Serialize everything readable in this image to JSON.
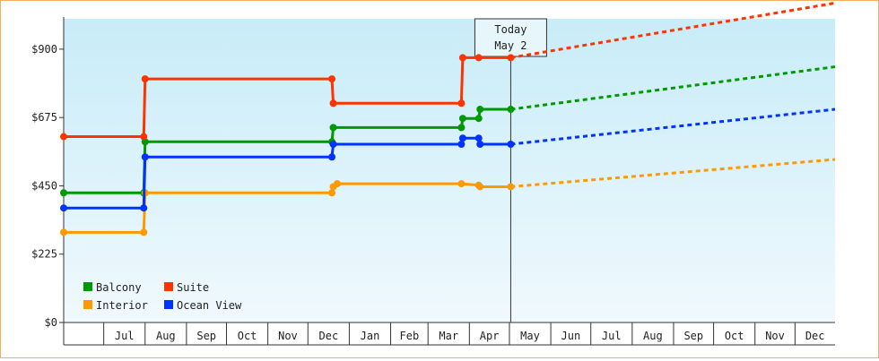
{
  "chart_data": {
    "type": "line",
    "title": "",
    "xlabel": "",
    "ylabel": "",
    "x_unit": "month",
    "x_range": [
      "2024-06-01",
      "2025-12-31"
    ],
    "ylim": [
      0,
      1000
    ],
    "y_ticks": [
      {
        "value": 0,
        "label": "$0"
      },
      {
        "value": 225,
        "label": "$225"
      },
      {
        "value": 450,
        "label": "$450"
      },
      {
        "value": 675,
        "label": "$675"
      },
      {
        "value": 900,
        "label": "$900"
      }
    ],
    "x_tick_labels": [
      {
        "date": "2024-07-01",
        "label": "Jul"
      },
      {
        "date": "2024-08-01",
        "label": "Aug"
      },
      {
        "date": "2024-09-01",
        "label": "Sep"
      },
      {
        "date": "2024-10-01",
        "label": "Oct"
      },
      {
        "date": "2024-11-01",
        "label": "Nov"
      },
      {
        "date": "2024-12-01",
        "label": "Dec"
      },
      {
        "date": "2025-01-01",
        "label": "Jan"
      },
      {
        "date": "2025-02-01",
        "label": "Feb"
      },
      {
        "date": "2025-03-01",
        "label": "Mar"
      },
      {
        "date": "2025-04-01",
        "label": "Apr"
      },
      {
        "date": "2025-05-01",
        "label": "May"
      },
      {
        "date": "2025-06-01",
        "label": "Jun"
      },
      {
        "date": "2025-07-01",
        "label": "Jul"
      },
      {
        "date": "2025-08-01",
        "label": "Aug"
      },
      {
        "date": "2025-09-01",
        "label": "Sep"
      },
      {
        "date": "2025-10-01",
        "label": "Oct"
      },
      {
        "date": "2025-11-01",
        "label": "Nov"
      },
      {
        "date": "2025-12-01",
        "label": "Dec"
      }
    ],
    "today": {
      "date": "2025-05-02",
      "label_line1": "Today",
      "label_line2": "May 2"
    },
    "legend_position": "bottom-left",
    "grid": false,
    "series": [
      {
        "name": "Balcony",
        "color": "#009900",
        "points": [
          {
            "x": "2024-06-01",
            "y": 427
          },
          {
            "x": "2024-07-31",
            "y": 427
          },
          {
            "x": "2024-08-01",
            "y": 595
          },
          {
            "x": "2024-12-19",
            "y": 595
          },
          {
            "x": "2024-12-20",
            "y": 642
          },
          {
            "x": "2025-03-26",
            "y": 642
          },
          {
            "x": "2025-03-27",
            "y": 672
          },
          {
            "x": "2025-04-08",
            "y": 672
          },
          {
            "x": "2025-04-09",
            "y": 702
          },
          {
            "x": "2025-05-02",
            "y": 702
          }
        ],
        "projection_end": {
          "x": "2025-12-31",
          "y": 842
        }
      },
      {
        "name": "Suite",
        "color": "#ff3300",
        "points": [
          {
            "x": "2024-06-01",
            "y": 612
          },
          {
            "x": "2024-07-31",
            "y": 612
          },
          {
            "x": "2024-08-01",
            "y": 802
          },
          {
            "x": "2024-12-19",
            "y": 802
          },
          {
            "x": "2024-12-20",
            "y": 722
          },
          {
            "x": "2025-03-26",
            "y": 722
          },
          {
            "x": "2025-03-27",
            "y": 872
          },
          {
            "x": "2025-04-08",
            "y": 872
          },
          {
            "x": "2025-05-02",
            "y": 872
          }
        ],
        "projection_end": {
          "x": "2025-12-31",
          "y": 1052
        }
      },
      {
        "name": "Interior",
        "color": "#ff9900",
        "points": [
          {
            "x": "2024-06-01",
            "y": 297
          },
          {
            "x": "2024-07-31",
            "y": 297
          },
          {
            "x": "2024-08-01",
            "y": 427
          },
          {
            "x": "2024-12-19",
            "y": 427
          },
          {
            "x": "2024-12-20",
            "y": 447
          },
          {
            "x": "2024-12-23",
            "y": 457
          },
          {
            "x": "2025-03-26",
            "y": 457
          },
          {
            "x": "2025-04-08",
            "y": 452
          },
          {
            "x": "2025-04-09",
            "y": 447
          },
          {
            "x": "2025-05-02",
            "y": 447
          }
        ],
        "projection_end": {
          "x": "2025-12-31",
          "y": 537
        }
      },
      {
        "name": "Ocean View",
        "color": "#0033ff",
        "points": [
          {
            "x": "2024-06-01",
            "y": 377
          },
          {
            "x": "2024-07-31",
            "y": 377
          },
          {
            "x": "2024-08-01",
            "y": 545
          },
          {
            "x": "2024-12-19",
            "y": 545
          },
          {
            "x": "2024-12-20",
            "y": 587
          },
          {
            "x": "2025-03-26",
            "y": 587
          },
          {
            "x": "2025-03-27",
            "y": 607
          },
          {
            "x": "2025-04-08",
            "y": 607
          },
          {
            "x": "2025-04-09",
            "y": 587
          },
          {
            "x": "2025-05-02",
            "y": 587
          }
        ],
        "projection_end": {
          "x": "2025-12-31",
          "y": 702
        }
      }
    ],
    "legend": [
      {
        "name": "Balcony",
        "color": "#009900"
      },
      {
        "name": "Suite",
        "color": "#ff3300"
      },
      {
        "name": "Interior",
        "color": "#ff9900"
      },
      {
        "name": "Ocean View",
        "color": "#0033ff"
      }
    ],
    "colors": {
      "plot_bg_top": "#c8ecf8",
      "plot_bg_bottom": "#f0f9fd",
      "frame_border": "#f0b060"
    }
  }
}
